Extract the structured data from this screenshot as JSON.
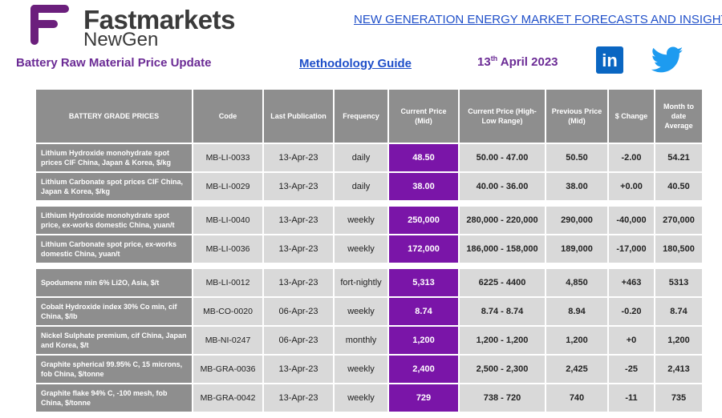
{
  "brand": {
    "name_line1": "Fastmarkets",
    "name_line2": "NewGen",
    "logo_color": "#6b1f7c"
  },
  "header": {
    "headline": "NEW GENERATION ENERGY MARKET FORECASTS AND INSIGHTS",
    "subtitle": "Battery Raw Material Price Update",
    "methodology": "Methodology Guide",
    "date_day": "13",
    "date_suffix": "th",
    "date_rest": " April 2023"
  },
  "social": {
    "linkedin_label": "in",
    "linkedin_icon": "linkedin-icon",
    "twitter_icon": "twitter-icon"
  },
  "table": {
    "headers": [
      "BATTERY GRADE PRICES",
      "Code",
      "Last Publication",
      "Frequency",
      "Current Price (Mid)",
      "Current Price (High-Low Range)",
      "Previous Price (Mid)",
      "$ Change",
      "Month to date Average"
    ],
    "groups": [
      [
        {
          "name": "Lithium Hydroxide monohydrate spot prices CIF China, Japan & Korea, $/kg",
          "code": "MB-LI-0033",
          "last": "13-Apr-23",
          "freq": "daily",
          "current": "48.50",
          "range": "50.00 - 47.00",
          "previous": "50.50",
          "change": "-2.00",
          "mtd": "54.21"
        },
        {
          "name": "Lithium Carbonate spot prices CIF China, Japan & Korea, $/kg",
          "code": "MB-LI-0029",
          "last": "13-Apr-23",
          "freq": "daily",
          "current": "38.00",
          "range": "40.00 - 36.00",
          "previous": "38.00",
          "change": "+0.00",
          "mtd": "40.50"
        }
      ],
      [
        {
          "name": "Lithium Hydroxide monohydrate spot price, ex-works domestic China, yuan/t",
          "code": "MB-LI-0040",
          "last": "13-Apr-23",
          "freq": "weekly",
          "current": "250,000",
          "range": "280,000 - 220,000",
          "previous": "290,000",
          "change": "-40,000",
          "mtd": "270,000"
        },
        {
          "name": "Lithium Carbonate spot price, ex-works domestic China, yuan/t",
          "code": "MB-LI-0036",
          "last": "13-Apr-23",
          "freq": "weekly",
          "current": "172,000",
          "range": "186,000 - 158,000",
          "previous": "189,000",
          "change": "-17,000",
          "mtd": "180,500"
        }
      ],
      [
        {
          "name": "Spodumene min 6% Li2O, Asia, $/t",
          "code": "MB-LI-0012",
          "last": "13-Apr-23",
          "freq": "fort-nightly",
          "current": "5,313",
          "range": "6225 - 4400",
          "previous": "4,850",
          "change": "+463",
          "mtd": "5313"
        },
        {
          "name": "Cobalt Hydroxide index 30% Co min, cif China, $/lb",
          "code": "MB-CO-0020",
          "last": "06-Apr-23",
          "freq": "weekly",
          "current": "8.74",
          "range": "8.74 - 8.74",
          "previous": "8.94",
          "change": "-0.20",
          "mtd": "8.74"
        },
        {
          "name": "Nickel Sulphate premium, cif China, Japan and Korea, $/t",
          "code": "MB-NI-0247",
          "last": "06-Apr-23",
          "freq": "monthly",
          "current": "1,200",
          "range": "1,200 - 1,200",
          "previous": "1,200",
          "change": "+0",
          "mtd": "1,200"
        },
        {
          "name": "Graphite spherical 99.95% C, 15 microns, fob China, $/tonne",
          "code": "MB-GRA-0036",
          "last": "13-Apr-23",
          "freq": "weekly",
          "current": "2,400",
          "range": "2,500 - 2,300",
          "previous": "2,425",
          "change": "-25",
          "mtd": "2,413"
        },
        {
          "name": "Graphite flake 94% C, -100 mesh, fob China, $/tonne",
          "code": "MB-GRA-0042",
          "last": "13-Apr-23",
          "freq": "weekly",
          "current": "729",
          "range": "738 - 720",
          "previous": "740",
          "change": "-11",
          "mtd": "735"
        }
      ]
    ]
  }
}
